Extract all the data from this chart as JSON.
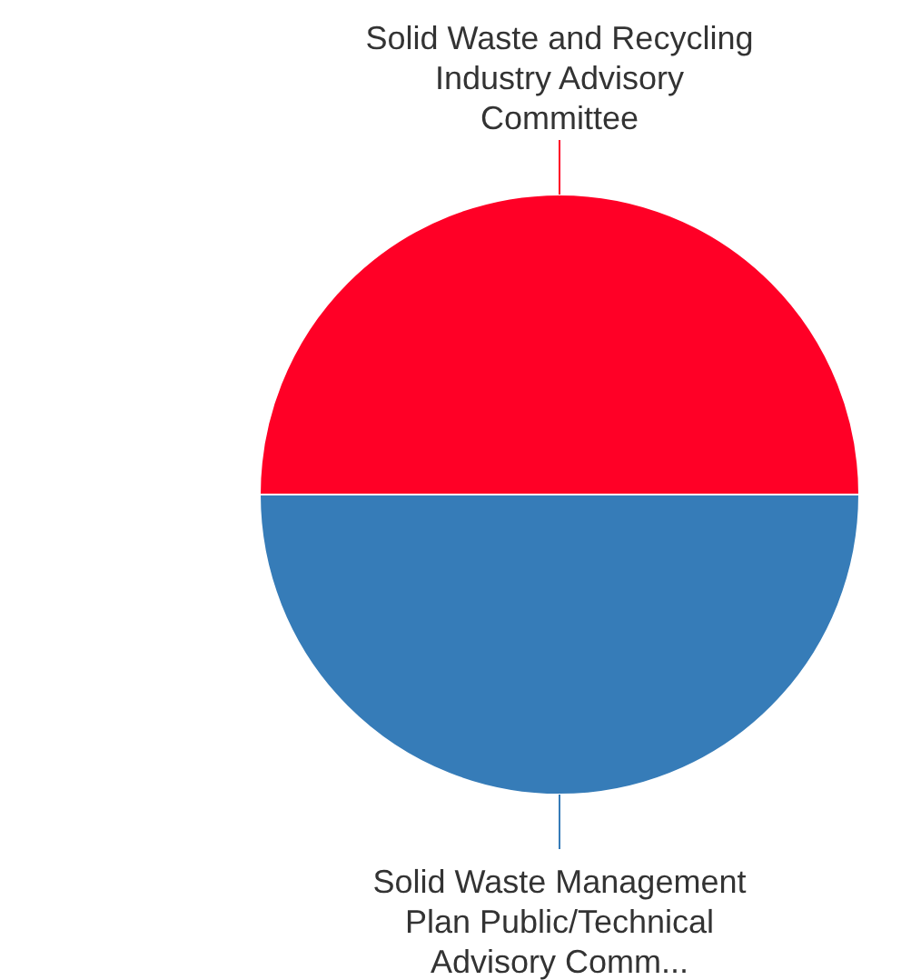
{
  "chart_data": {
    "type": "pie",
    "categories": [
      "Solid Waste and Recycling Industry Advisory Committee",
      "Solid Waste Management Plan Public/Technical Advisory Comm..."
    ],
    "values": [
      50,
      50
    ],
    "colors": [
      "#ff0026",
      "#367cb8"
    ]
  }
}
